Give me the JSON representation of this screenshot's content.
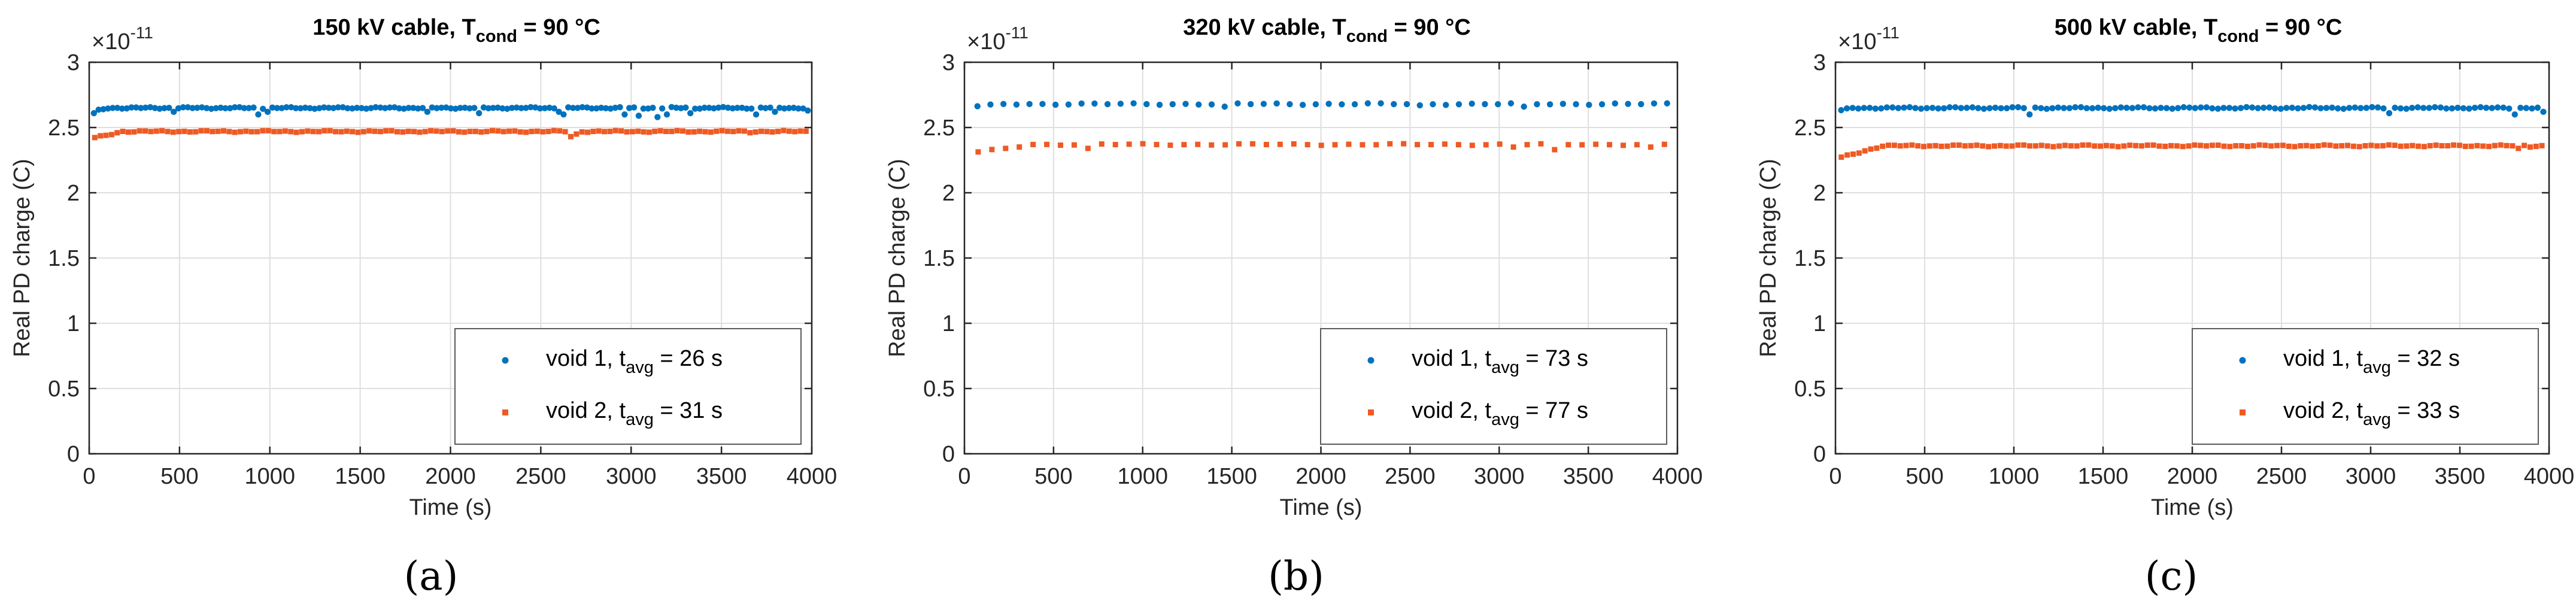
{
  "figure": {
    "colors": {
      "void1": "#0072BD",
      "void2": "#EE5A24",
      "axis": "#262626",
      "grid": "#DFDFDF",
      "legendBorder": "#5a5a5a"
    }
  },
  "chart_data": [
    {
      "type": "scatter",
      "panel_label": "(a)",
      "title_prefix": "150 kV cable, T",
      "title_sub": "cond",
      "title_suffix": " = 90 °C",
      "xlabel": "Time (s)",
      "ylabel": "Real PD charge (C)",
      "exponent_base": "×10",
      "exponent_power": "-11",
      "xlim": [
        0,
        4000
      ],
      "ylim": [
        0,
        3
      ],
      "xticks": [
        "0",
        "500",
        "1000",
        "1500",
        "2000",
        "2500",
        "3000",
        "3500",
        "4000"
      ],
      "yticks": [
        "0",
        "0.5",
        "1",
        "1.5",
        "2",
        "2.5",
        "3"
      ],
      "grid": true,
      "legend_position": "bottom-right",
      "series": [
        {
          "key": "void1",
          "legend_prefix": "void 1, t",
          "legend_sub": "avg",
          "legend_suffix": " = 26 s",
          "marker": "dot",
          "x_start": 26,
          "x_step": 26,
          "x_end": 3990,
          "base": 2.65,
          "start_value": 2.62,
          "ramp_points": 3,
          "dips": [
            [
              26,
              2.61
            ],
            [
              470,
              2.62
            ],
            [
              930,
              2.6
            ],
            [
              1000,
              2.62
            ],
            [
              1870,
              2.62
            ],
            [
              2160,
              2.61
            ],
            [
              2600,
              2.62
            ],
            [
              2620,
              2.6
            ],
            [
              2960,
              2.6
            ],
            [
              3050,
              2.59
            ],
            [
              3150,
              2.58
            ],
            [
              3200,
              2.6
            ],
            [
              3330,
              2.61
            ],
            [
              3680,
              2.6
            ],
            [
              3800,
              2.62
            ],
            [
              3990,
              2.63
            ]
          ]
        },
        {
          "key": "void2",
          "legend_prefix": "void 2, t",
          "legend_sub": "avg",
          "legend_suffix": " = 31 s",
          "marker": "square",
          "x_start": 31,
          "x_step": 31,
          "x_end": 3990,
          "base": 2.47,
          "start_value": 2.42,
          "ramp_points": 5,
          "dips": [
            [
              2660,
              2.43
            ],
            [
              2700,
              2.45
            ],
            [
              3660,
              2.46
            ],
            [
              3800,
              2.47
            ]
          ]
        }
      ]
    },
    {
      "type": "scatter",
      "panel_label": "(b)",
      "title_prefix": "320 kV cable, T",
      "title_sub": "cond",
      "title_suffix": " = 90 °C",
      "xlabel": "Time (s)",
      "ylabel": "Real PD charge (C)",
      "exponent_base": "×10",
      "exponent_power": "-11",
      "xlim": [
        0,
        4000
      ],
      "ylim": [
        0,
        3
      ],
      "xticks": [
        "0",
        "500",
        "1000",
        "1500",
        "2000",
        "2500",
        "3000",
        "3500",
        "4000"
      ],
      "yticks": [
        "0",
        "0.5",
        "1",
        "1.5",
        "2",
        "2.5",
        "3"
      ],
      "grid": true,
      "legend_position": "bottom-right",
      "series": [
        {
          "key": "void1",
          "legend_prefix": "void 1, t",
          "legend_sub": "avg",
          "legend_suffix": " = 73 s",
          "marker": "dot",
          "x_start": 73,
          "x_step": 73,
          "x_end": 3950,
          "base": 2.68,
          "start_value": 2.66,
          "ramp_points": 2,
          "dips": [
            [
              1460,
              2.66
            ],
            [
              2560,
              2.67
            ],
            [
              3140,
              2.66
            ]
          ]
        },
        {
          "key": "void2",
          "legend_prefix": "void 2, t",
          "legend_sub": "avg",
          "legend_suffix": " = 77 s",
          "marker": "square",
          "x_start": 77,
          "x_step": 77,
          "x_end": 3950,
          "base": 2.37,
          "start_value": 2.31,
          "ramp_points": 4,
          "dips": [
            [
              693,
              2.34
            ],
            [
              3080,
              2.35
            ],
            [
              3310,
              2.33
            ],
            [
              3850,
              2.35
            ]
          ]
        }
      ]
    },
    {
      "type": "scatter",
      "panel_label": "(c)",
      "title_prefix": "500 kV cable, T",
      "title_sub": "cond",
      "title_suffix": " = 90 °C",
      "xlabel": "Time (s)",
      "ylabel": "Real PD charge (C)",
      "exponent_base": "×10",
      "exponent_power": "-11",
      "xlim": [
        0,
        4000
      ],
      "ylim": [
        0,
        3
      ],
      "xticks": [
        "0",
        "500",
        "1000",
        "1500",
        "2000",
        "2500",
        "3000",
        "3500",
        "4000"
      ],
      "yticks": [
        "0",
        "0.5",
        "1",
        "1.5",
        "2",
        "2.5",
        "3"
      ],
      "grid": true,
      "legend_position": "bottom-right",
      "series": [
        {
          "key": "void1",
          "legend_prefix": "void 1, t",
          "legend_sub": "avg",
          "legend_suffix": " = 32 s",
          "marker": "dot",
          "x_start": 32,
          "x_step": 32,
          "x_end": 3990,
          "base": 2.65,
          "start_value": 2.63,
          "ramp_points": 2,
          "dips": [
            [
              1088,
              2.6
            ],
            [
              3104,
              2.61
            ],
            [
              3808,
              2.6
            ],
            [
              3968,
              2.62
            ]
          ]
        },
        {
          "key": "void2",
          "legend_prefix": "void 2, t",
          "legend_sub": "avg",
          "legend_suffix": " = 33 s",
          "marker": "square",
          "x_start": 33,
          "x_step": 33,
          "x_end": 3990,
          "base": 2.36,
          "start_value": 2.27,
          "ramp_points": 7,
          "dips": [
            [
              3828,
              2.34
            ],
            [
              3894,
              2.35
            ]
          ]
        }
      ]
    }
  ]
}
